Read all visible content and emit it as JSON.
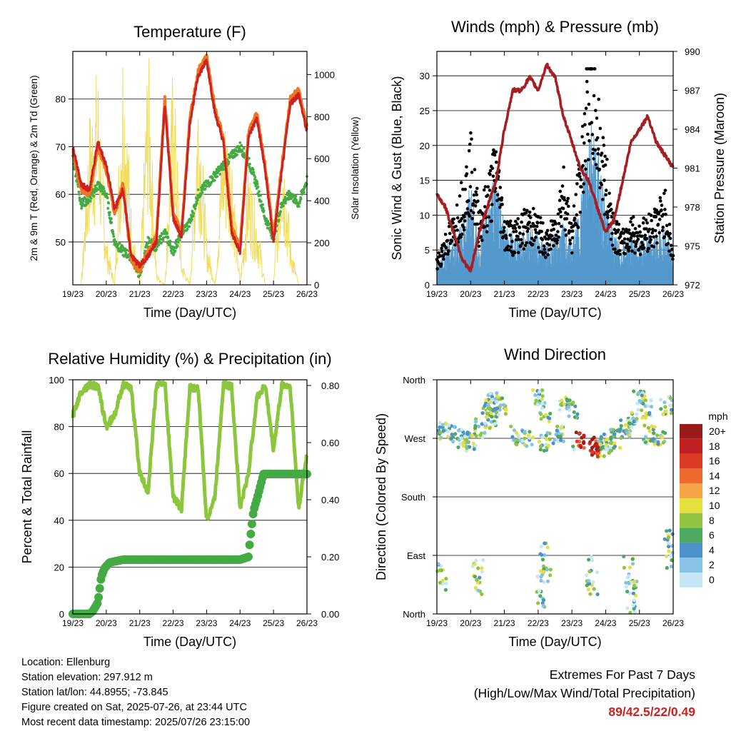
{
  "info": {
    "location": "Location: Ellenburg",
    "elevation": "Station elevation: 297.912 m",
    "latlon": "Station lat/lon: 44.8955; -73.845",
    "created": "Figure created on Sat, 2025-07-26, at 23:44 UTC",
    "recent": "Most recent data timestamp: 2025/07/26 23:15:00"
  },
  "extremes": {
    "title": "Extremes For Past 7 Days",
    "subtitle": "(High/Low/Max Wind/Total Precipitation)",
    "values": "89/42.5/22/0.49"
  },
  "colors": {
    "temp2m": "#ee7722",
    "temp9m": "#cc2222",
    "dewpoint": "#44aa44",
    "solar": "#f2dc60",
    "wind": "#5599cc",
    "gust": "#000000",
    "pressure": "#a51e22",
    "rh": "#8cc63f",
    "precip": "#44aa44",
    "speed_scale": [
      "#c6e6f8",
      "#86c2e6",
      "#4b90c8",
      "#4da860",
      "#8fc53f",
      "#e6e03e",
      "#f6a446",
      "#ee6a2a",
      "#dd3a26",
      "#c02022",
      "#9a1a1a"
    ]
  },
  "chart_data": [
    {
      "type": "line",
      "title": "Temperature (F)",
      "xlabel": "Time (Day/UTC)",
      "ylabel": "2m & 9m T (Red, Orange) & 2m Td (Green)",
      "y2label": "Solar Insolation (Yellow)",
      "x_ticks": [
        "19/23",
        "20/23",
        "21/23",
        "22/23",
        "23/23",
        "24/23",
        "25/23",
        "26/23"
      ],
      "ylim": [
        41,
        90
      ],
      "y_ticks": [
        50,
        60,
        70,
        80
      ],
      "y2lim": [
        0,
        1110
      ],
      "y2_ticks": [
        0,
        200,
        400,
        600,
        800,
        1000
      ],
      "grid": true,
      "x": [
        0,
        0.25,
        0.5,
        0.75,
        1.0,
        1.25,
        1.5,
        1.75,
        2.0,
        2.25,
        2.5,
        2.75,
        3.0,
        3.25,
        3.5,
        3.75,
        4.0,
        4.25,
        4.5,
        4.75,
        5.0,
        5.25,
        5.5,
        5.75,
        6.0,
        6.25,
        6.5,
        6.75,
        7.0
      ],
      "series": [
        {
          "name": "2m T",
          "values": [
            69,
            61,
            60,
            70,
            65,
            56,
            62,
            46,
            44,
            48,
            51,
            80,
            56,
            52,
            76,
            86,
            89,
            78,
            72,
            53,
            49,
            73,
            77,
            66,
            51,
            66,
            80,
            82,
            74
          ]
        },
        {
          "name": "9m T",
          "values": [
            70,
            62,
            61,
            71,
            66,
            57,
            61,
            47,
            45,
            47,
            50,
            79,
            55,
            51,
            75,
            85,
            88,
            77,
            71,
            52,
            48,
            72,
            76,
            65,
            50,
            65,
            79,
            81,
            73
          ]
        },
        {
          "name": "2m Td",
          "values": [
            68,
            58,
            59,
            62,
            60,
            50,
            48,
            47,
            43,
            50,
            49,
            52,
            48,
            52,
            54,
            60,
            62,
            64,
            66,
            68,
            70,
            67,
            62,
            55,
            51,
            58,
            60,
            58,
            63
          ]
        },
        {
          "name": "Solar",
          "values": [
            0,
            0,
            700,
            900,
            200,
            0,
            1050,
            300,
            0,
            1000,
            50,
            0,
            950,
            100,
            0,
            900,
            200,
            0,
            700,
            600,
            0,
            500,
            300,
            0,
            0,
            700,
            200,
            0,
            0
          ]
        }
      ]
    },
    {
      "type": "line",
      "title": "Winds (mph) & Pressure (mb)",
      "xlabel": "Time (Day/UTC)",
      "ylabel": "Sonic Wind & Gust (Blue, Black)",
      "y2label": "Station Pressure (Maroon)",
      "x_ticks": [
        "19/23",
        "20/23",
        "21/23",
        "22/23",
        "23/23",
        "24/23",
        "25/23",
        "26/23"
      ],
      "ylim": [
        0,
        33.5
      ],
      "y_ticks": [
        0,
        5,
        10,
        15,
        20,
        25,
        30
      ],
      "y2lim": [
        972,
        990
      ],
      "y2_ticks": [
        972,
        975,
        978,
        981,
        984,
        987,
        990
      ],
      "grid": true,
      "x": [
        0,
        0.25,
        0.5,
        0.75,
        1.0,
        1.25,
        1.5,
        1.75,
        2.0,
        2.25,
        2.5,
        2.75,
        3.0,
        3.25,
        3.5,
        3.75,
        4.0,
        4.25,
        4.5,
        4.75,
        5.0,
        5.25,
        5.5,
        5.75,
        6.0,
        6.25,
        6.5,
        6.75,
        7.0
      ],
      "series": [
        {
          "name": "Wind",
          "values": [
            2,
            4,
            5,
            6,
            10,
            4,
            8,
            12,
            6,
            5,
            5,
            6,
            5,
            4,
            5,
            6,
            4,
            8,
            18,
            14,
            8,
            5,
            4,
            5,
            4,
            5,
            5,
            6,
            3
          ]
        },
        {
          "name": "Gust",
          "values": [
            3,
            6,
            8,
            12,
            17,
            9,
            12,
            17,
            8,
            7,
            8,
            9,
            8,
            6,
            8,
            14,
            7,
            15,
            30,
            23,
            15,
            8,
            6,
            8,
            7,
            8,
            9,
            11,
            4
          ]
        },
        {
          "name": "Pressure",
          "values": [
            979,
            978,
            976,
            974,
            973,
            976,
            978,
            980,
            984,
            987,
            987,
            988,
            987,
            989,
            988,
            985,
            983,
            981,
            980,
            978,
            976,
            977,
            980,
            983,
            984,
            985,
            983,
            982,
            981
          ]
        }
      ]
    },
    {
      "type": "line",
      "title": "Relative Humidity (%) & Precipitation (in)",
      "xlabel": "Time (Day/UTC)",
      "ylabel": "Percent & Total Rainfall",
      "x_ticks": [
        "19/23",
        "20/23",
        "21/23",
        "22/23",
        "23/23",
        "24/23",
        "25/23",
        "26/23"
      ],
      "ylim": [
        0,
        100
      ],
      "y_ticks": [
        0,
        20,
        40,
        60,
        80,
        100
      ],
      "y2lim": [
        0,
        0.82
      ],
      "y2_ticks": [
        "0.00",
        "0.20",
        "0.40",
        "0.60",
        "0.80"
      ],
      "grid": true,
      "x": [
        0,
        0.25,
        0.5,
        0.75,
        1.0,
        1.25,
        1.5,
        1.75,
        2.0,
        2.25,
        2.5,
        2.75,
        3.0,
        3.25,
        3.5,
        3.75,
        4.0,
        4.25,
        4.5,
        4.75,
        5.0,
        5.25,
        5.5,
        5.75,
        6.0,
        6.25,
        6.5,
        6.75,
        7.0
      ],
      "series": [
        {
          "name": "RH",
          "values": [
            85,
            95,
            98,
            97,
            80,
            85,
            98,
            96,
            60,
            52,
            98,
            99,
            50,
            45,
            97,
            96,
            40,
            50,
            98,
            97,
            45,
            60,
            92,
            98,
            70,
            98,
            97,
            45,
            68
          ]
        },
        {
          "name": "Precipitation",
          "x": [
            0,
            0.5,
            0.6,
            0.75,
            0.85,
            0.95,
            1.1,
            1.5,
            2.0,
            3.0,
            4.0,
            5.0,
            5.25,
            5.3,
            5.4,
            5.5,
            5.7,
            7.0
          ],
          "values": [
            0,
            0,
            0.01,
            0.04,
            0.13,
            0.16,
            0.18,
            0.19,
            0.19,
            0.19,
            0.19,
            0.19,
            0.2,
            0.26,
            0.36,
            0.4,
            0.49,
            0.49
          ]
        }
      ]
    },
    {
      "type": "scatter",
      "title": "Wind Direction",
      "xlabel": "Time (Day/UTC)",
      "ylabel": "Direction (Colored By Speed)",
      "x_ticks": [
        "19/23",
        "20/23",
        "21/23",
        "22/23",
        "23/23",
        "24/23",
        "25/23",
        "26/23"
      ],
      "y_ticks": [
        "North",
        "East",
        "South",
        "West",
        "North"
      ],
      "ylim": [
        0,
        360
      ],
      "grid": true,
      "legend_title": "mph",
      "legend_labels": [
        "20+",
        "18",
        "16",
        "14",
        "12",
        "10",
        "8",
        "6",
        "4",
        "2",
        "0"
      ],
      "series": [
        {
          "name": "West-band",
          "x": [
            0.2,
            0.5,
            0.8,
            1.0,
            1.3,
            1.6,
            2.3,
            2.7,
            3.2,
            3.6,
            4.2,
            4.7,
            4.9,
            5.1,
            5.3,
            5.6,
            5.8,
            6.3,
            6.6
          ],
          "values": [
            280,
            275,
            270,
            265,
            285,
            300,
            275,
            270,
            265,
            275,
            265,
            258,
            255,
            262,
            270,
            285,
            300,
            275,
            268
          ]
        },
        {
          "name": "Upper-band",
          "x": [
            1.5,
            1.7,
            1.9,
            3.0,
            3.2,
            3.8,
            4.0,
            6.0,
            6.2,
            6.8
          ],
          "values": [
            315,
            325,
            320,
            330,
            310,
            320,
            315,
            330,
            315,
            320
          ]
        },
        {
          "name": "East-band",
          "x": [
            0.1,
            1.2,
            3.1,
            3.2,
            4.6,
            5.7,
            5.8,
            6.9
          ],
          "values": [
            50,
            60,
            40,
            80,
            60,
            60,
            20,
            100
          ]
        }
      ]
    }
  ]
}
